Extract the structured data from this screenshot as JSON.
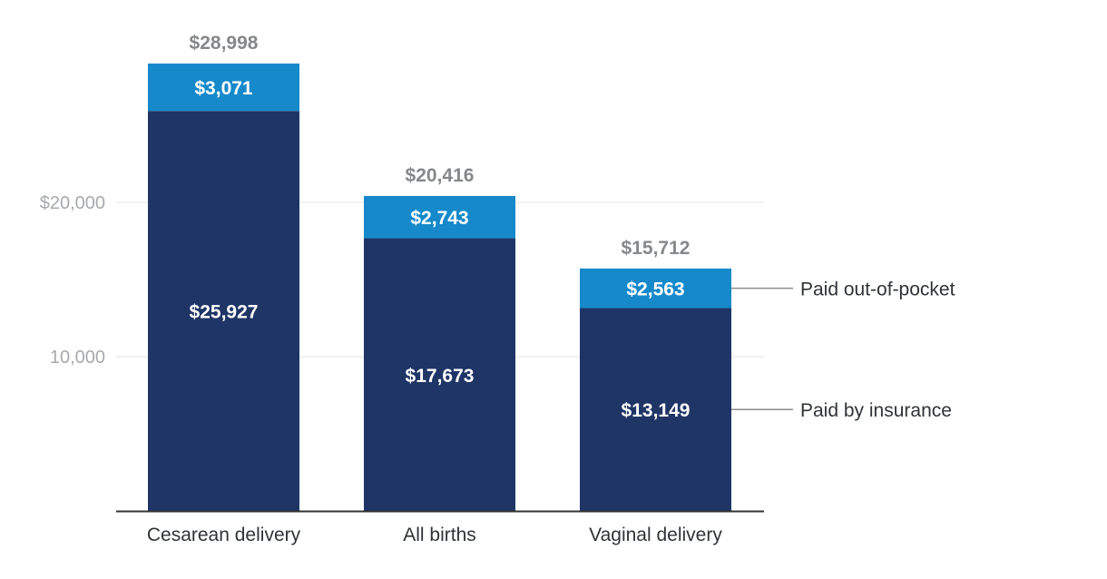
{
  "chart_data": {
    "type": "bar",
    "stacked": true,
    "categories": [
      "Cesarean delivery",
      "All births",
      "Vaginal delivery"
    ],
    "series": [
      {
        "name": "Paid by insurance",
        "values": [
          25927,
          17673,
          13149
        ],
        "labels": [
          "$25,927",
          "$17,673",
          "$13,149"
        ],
        "color": "#1f3566"
      },
      {
        "name": "Paid out-of-pocket",
        "values": [
          3071,
          2743,
          2563
        ],
        "labels": [
          "$3,071",
          "$2,743",
          "$2,563"
        ],
        "color": "#1689cb"
      }
    ],
    "totals": [
      28998,
      20416,
      15712
    ],
    "total_labels": [
      "$28,998",
      "$20,416",
      "$15,712"
    ],
    "yticks": [
      {
        "value": 20000,
        "label": "$20,000"
      },
      {
        "value": 10000,
        "label": "10,000"
      }
    ],
    "ylim": [
      0,
      30000
    ],
    "grid": true,
    "legend": "right",
    "colors": {
      "gridline": "#e3e3e3",
      "axis": "#333333",
      "tick_text": "#a7a9ad",
      "total_text": "#858789",
      "category_text": "#2f3338",
      "connector": "#8c8c8c"
    }
  }
}
